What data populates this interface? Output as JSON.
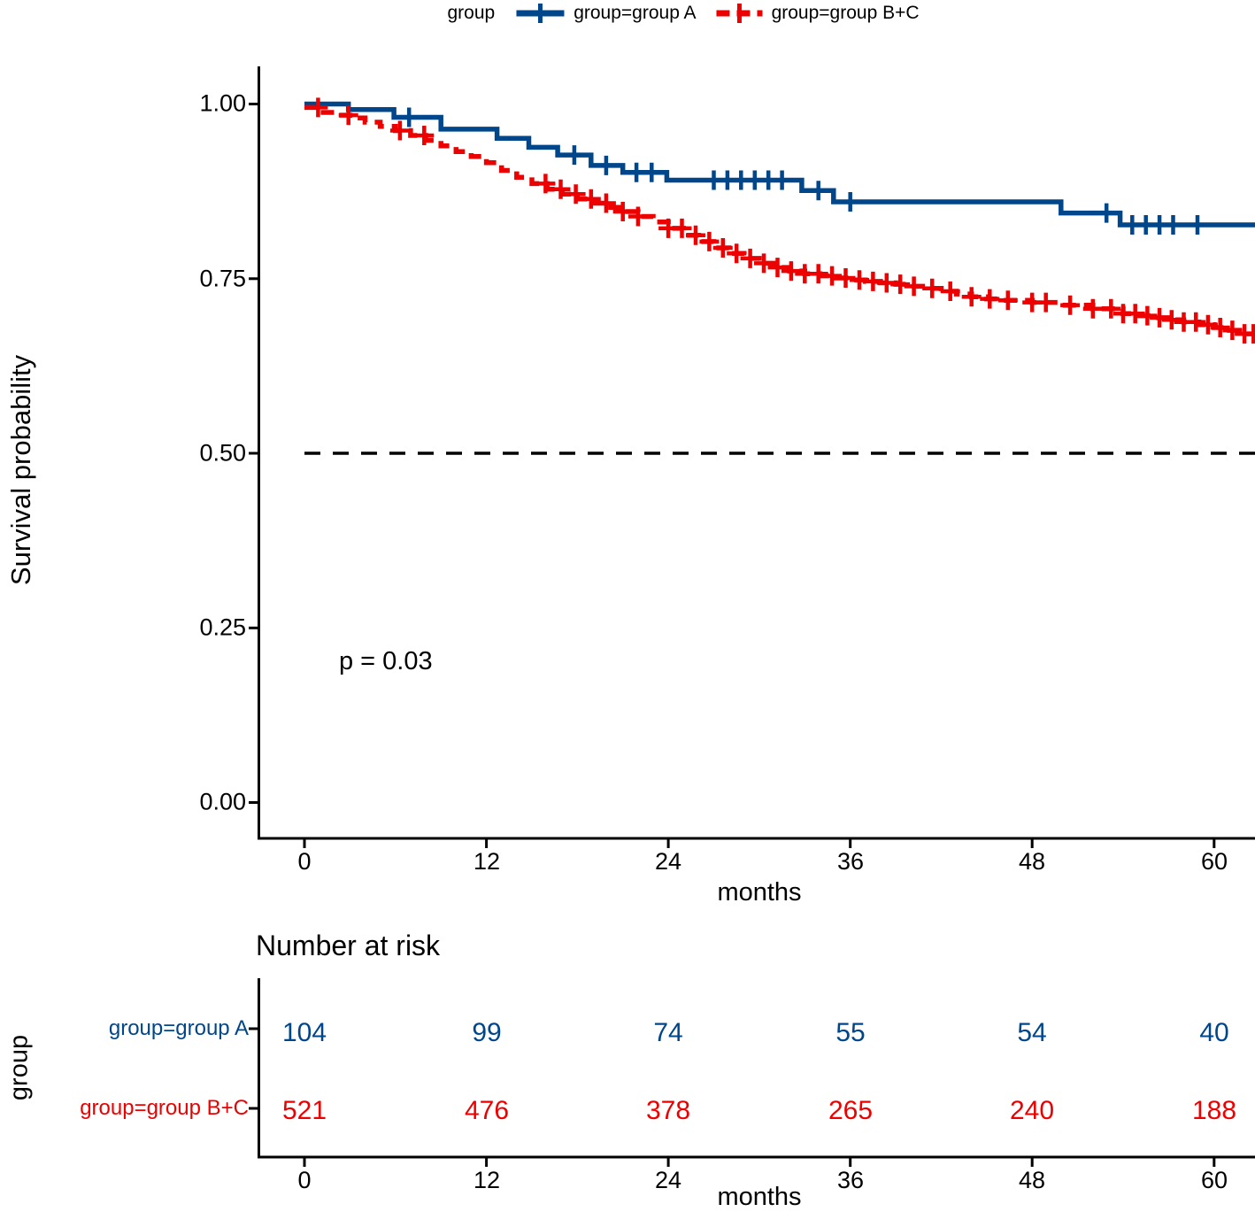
{
  "legend": {
    "title": "group",
    "entries": [
      {
        "label": "group=group A",
        "color": "#00468B",
        "linestyle": "solid"
      },
      {
        "label": "group=group B+C",
        "color": "#ED0000",
        "linestyle": "dashed"
      }
    ]
  },
  "chart_data": {
    "type": "line",
    "subtype": "kaplan_meier_step",
    "title": "",
    "xlabel": "months",
    "ylabel": "Survival probability",
    "xticks": [
      0,
      12,
      24,
      36,
      48,
      60
    ],
    "ytick_labels": [
      "1.00",
      "0.75",
      "0.50",
      "0.25",
      "0.00"
    ],
    "ytick_values": [
      1.0,
      0.75,
      0.5,
      0.25,
      0.0
    ],
    "xlim": [
      0,
      62.7
    ],
    "ylim": [
      0,
      1
    ],
    "grid": false,
    "legend_position": "top",
    "pvalue_text": "p = 0.03",
    "reference_line_y": 0.5,
    "series": [
      {
        "name": "group=group A",
        "color": "#00468B",
        "linestyle": "solid",
        "steps": [
          [
            0,
            1.0
          ],
          [
            2.9,
            0.992
          ],
          [
            5.9,
            0.981
          ],
          [
            9.0,
            0.964
          ],
          [
            12.7,
            0.951
          ],
          [
            14.8,
            0.938
          ],
          [
            16.7,
            0.927
          ],
          [
            18.9,
            0.912
          ],
          [
            21.0,
            0.902
          ],
          [
            23.9,
            0.891
          ],
          [
            32.8,
            0.876
          ],
          [
            34.9,
            0.86
          ],
          [
            49.9,
            0.844
          ],
          [
            53.8,
            0.827
          ]
        ],
        "end_time": 62.7,
        "censor_times": [
          6.9,
          17.8,
          19.9,
          21.9,
          22.9,
          27.0,
          27.9,
          28.8,
          29.7,
          30.6,
          31.5,
          33.9,
          36.0,
          52.9,
          54.6,
          55.5,
          56.4,
          57.3,
          58.9
        ]
      },
      {
        "name": "group=group B+C",
        "color": "#ED0000",
        "linestyle": "dashed",
        "steps": [
          [
            0,
            0.995
          ],
          [
            1,
            0.988
          ],
          [
            2,
            0.984
          ],
          [
            3,
            0.98
          ],
          [
            4,
            0.974
          ],
          [
            5,
            0.968
          ],
          [
            6,
            0.962
          ],
          [
            7,
            0.955
          ],
          [
            8,
            0.948
          ],
          [
            9,
            0.94
          ],
          [
            10,
            0.932
          ],
          [
            11,
            0.925
          ],
          [
            12,
            0.916
          ],
          [
            13,
            0.905
          ],
          [
            14,
            0.895
          ],
          [
            15,
            0.886
          ],
          [
            16,
            0.878
          ],
          [
            17,
            0.871
          ],
          [
            18,
            0.864
          ],
          [
            19,
            0.858
          ],
          [
            20,
            0.852
          ],
          [
            21,
            0.846
          ],
          [
            22,
            0.839
          ],
          [
            23,
            0.831
          ],
          [
            24,
            0.822
          ],
          [
            25,
            0.812
          ],
          [
            26,
            0.803
          ],
          [
            27,
            0.794
          ],
          [
            28,
            0.786
          ],
          [
            29,
            0.779
          ],
          [
            30,
            0.772
          ],
          [
            31,
            0.766
          ],
          [
            32,
            0.761
          ],
          [
            33,
            0.757
          ],
          [
            34,
            0.754
          ],
          [
            35,
            0.751
          ],
          [
            36,
            0.748
          ],
          [
            37,
            0.746
          ],
          [
            38,
            0.744
          ],
          [
            39,
            0.742
          ],
          [
            40,
            0.739
          ],
          [
            41,
            0.736
          ],
          [
            42,
            0.732
          ],
          [
            43,
            0.728
          ],
          [
            44,
            0.724
          ],
          [
            45,
            0.721
          ],
          [
            46,
            0.719
          ],
          [
            48,
            0.716
          ],
          [
            50,
            0.712
          ],
          [
            52,
            0.707
          ],
          [
            54,
            0.7
          ],
          [
            55,
            0.697
          ],
          [
            56,
            0.694
          ],
          [
            57,
            0.691
          ],
          [
            58,
            0.688
          ],
          [
            59,
            0.684
          ],
          [
            60,
            0.68
          ],
          [
            61,
            0.676
          ],
          [
            62,
            0.671
          ]
        ],
        "end_time": 62.7,
        "censor_times": [
          0.9,
          2.9,
          6.3,
          7.9,
          15.9,
          16.9,
          17.9,
          18.9,
          19.9,
          21.0,
          22.0,
          24.0,
          24.9,
          25.8,
          26.7,
          27.6,
          28.5,
          29.4,
          30.3,
          31.2,
          32.1,
          33.0,
          33.9,
          34.8,
          35.7,
          36.6,
          37.5,
          38.4,
          39.3,
          40.2,
          41.4,
          42.6,
          44.0,
          45.2,
          46.4,
          48.0,
          48.9,
          50.5,
          52.0,
          53.2,
          54.0,
          54.8,
          55.6,
          56.4,
          57.2,
          58.0,
          58.8,
          59.6,
          60.4,
          61.2,
          62.0,
          62.6
        ]
      }
    ]
  },
  "risk_table": {
    "title": "Number at risk",
    "ylabel": "group",
    "xlabel": "months",
    "xticks": [
      0,
      12,
      24,
      36,
      48,
      60
    ],
    "rows": [
      {
        "label": "group=group A",
        "color": "#00468B",
        "values": [
          104,
          99,
          74,
          55,
          54,
          40
        ]
      },
      {
        "label": "group=group B+C",
        "color": "#ED0000",
        "values": [
          521,
          476,
          378,
          265,
          240,
          188
        ]
      }
    ]
  }
}
